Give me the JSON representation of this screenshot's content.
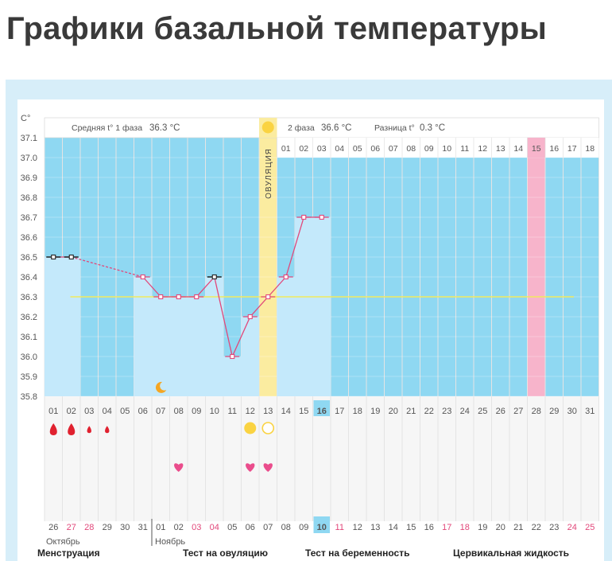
{
  "page": {
    "title": "Графики базальной температуры"
  },
  "chart_data": {
    "type": "line",
    "ylabel": "C°",
    "ylim": [
      35.8,
      37.1
    ],
    "yticks": [
      "37.1",
      "37.0",
      "36.9",
      "36.8",
      "36.7",
      "36.6",
      "36.5",
      "36.4",
      "36.3",
      "36.2",
      "36.1",
      "36.0",
      "35.9",
      "35.8"
    ],
    "cycle_days": [
      "01",
      "02",
      "03",
      "04",
      "05",
      "06",
      "07",
      "08",
      "09",
      "10",
      "11",
      "12",
      "13",
      "14",
      "15",
      "16",
      "17",
      "18",
      "19",
      "20",
      "21",
      "22",
      "23",
      "24",
      "25",
      "26",
      "27",
      "28",
      "29",
      "30",
      "31"
    ],
    "phase2_days": [
      "01",
      "02",
      "03",
      "04",
      "05",
      "06",
      "07",
      "08",
      "09",
      "10",
      "11",
      "12",
      "13",
      "14",
      "15",
      "16",
      "17",
      "18"
    ],
    "dates": [
      "26",
      "27",
      "28",
      "29",
      "30",
      "31",
      "01",
      "02",
      "03",
      "04",
      "05",
      "06",
      "07",
      "08",
      "09",
      "10",
      "11",
      "12",
      "13",
      "14",
      "15",
      "16",
      "17",
      "18",
      "19",
      "20",
      "21",
      "22",
      "23",
      "24",
      "25"
    ],
    "date_color_flags": [
      0,
      1,
      1,
      0,
      0,
      0,
      0,
      0,
      1,
      1,
      0,
      0,
      0,
      0,
      0,
      0,
      1,
      0,
      0,
      0,
      0,
      0,
      1,
      1,
      0,
      0,
      0,
      0,
      0,
      1,
      1
    ],
    "months": [
      "Октябрь",
      "Ноябрь"
    ],
    "temperatures": [
      {
        "day": 1,
        "value": 36.5,
        "marker": "black"
      },
      {
        "day": 2,
        "value": 36.5,
        "marker": "black"
      },
      {
        "day": 6,
        "value": 36.4,
        "marker": "pink"
      },
      {
        "day": 7,
        "value": 36.3,
        "marker": "pink"
      },
      {
        "day": 8,
        "value": 36.3,
        "marker": "pink"
      },
      {
        "day": 9,
        "value": 36.3,
        "marker": "pink"
      },
      {
        "day": 10,
        "value": 36.4,
        "marker": "black"
      },
      {
        "day": 11,
        "value": 36.0,
        "marker": "pink"
      },
      {
        "day": 12,
        "value": 36.2,
        "marker": "pink"
      },
      {
        "day": 13,
        "value": 36.3,
        "marker": "pink"
      },
      {
        "day": 14,
        "value": 36.4,
        "marker": "pink"
      },
      {
        "day": 15,
        "value": 36.7,
        "marker": "pink"
      },
      {
        "day": 16,
        "value": 36.7,
        "marker": "pink"
      }
    ],
    "average_line": 36.3,
    "phase1": {
      "label": "Средняя t° 1 фаза",
      "value": "36.3 °C"
    },
    "phase2": {
      "label": "2 фаза",
      "value": "36.6 °C",
      "diff_label": "Разница t°",
      "diff_value": "0.3 °C"
    },
    "ovulation": {
      "day": 13,
      "label": "ОВУЛЯЦИЯ"
    },
    "pink_column_day": 28,
    "current_day": 16,
    "current_date": "10",
    "menstruation": [
      {
        "day": 1,
        "size": "large"
      },
      {
        "day": 2,
        "size": "large"
      },
      {
        "day": 3,
        "size": "small"
      },
      {
        "day": 4,
        "size": "small"
      }
    ],
    "ovulation_test": [
      {
        "day": 12,
        "result": "positive"
      },
      {
        "day": 13,
        "result": "negative"
      }
    ],
    "hearts": [
      8,
      12,
      13
    ],
    "moon_day": 7,
    "legend": [
      "Менструация",
      "Тест на овуляцию",
      "Тест на беременность",
      "Цервикальная жидкость"
    ],
    "colors": {
      "frame": "#d7eef9",
      "plot_bg": "#8fd8f2",
      "band": "#c4e9fb",
      "pink_column": "#f7b4cb",
      "ovulation_column": "#fbeca0",
      "temp_line": "#e2477a",
      "average_line": "#f2ea5e",
      "accent_date": "#e2477a",
      "drop": "#e0212f",
      "heart": "#ea4d8c",
      "ovulation_dot": "#fad342",
      "moon": "#f5a623",
      "text": "#555555"
    }
  }
}
